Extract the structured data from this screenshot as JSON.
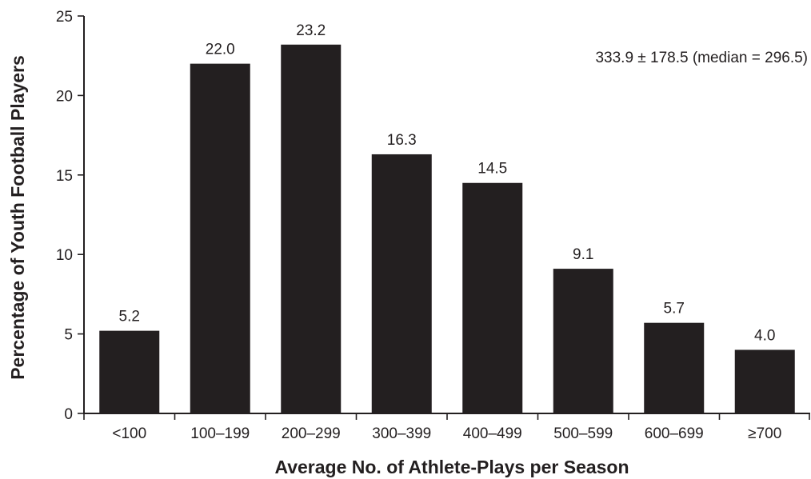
{
  "chart_data": {
    "type": "bar",
    "categories": [
      "<100",
      "100–199",
      "200–299",
      "300–399",
      "400–499",
      "500–599",
      "600–699",
      "≥700"
    ],
    "values": [
      5.2,
      22.0,
      23.2,
      16.3,
      14.5,
      9.1,
      5.7,
      4.0
    ],
    "value_labels": [
      "5.2",
      "22.0",
      "23.2",
      "16.3",
      "14.5",
      "9.1",
      "5.7",
      "4.0"
    ],
    "title": "",
    "xlabel": "Average No. of Athlete-Plays per Season",
    "ylabel": "Percentage of Youth Football Players",
    "ylim": [
      0,
      25
    ],
    "yticks": [
      0,
      5,
      10,
      15,
      20,
      25
    ],
    "annotation": "333.9 ± 178.5 (median = 296.5)",
    "grid": false,
    "legend": "none",
    "colors": {
      "bar": "#231f20",
      "text": "#231f20",
      "background": "#ffffff"
    }
  }
}
